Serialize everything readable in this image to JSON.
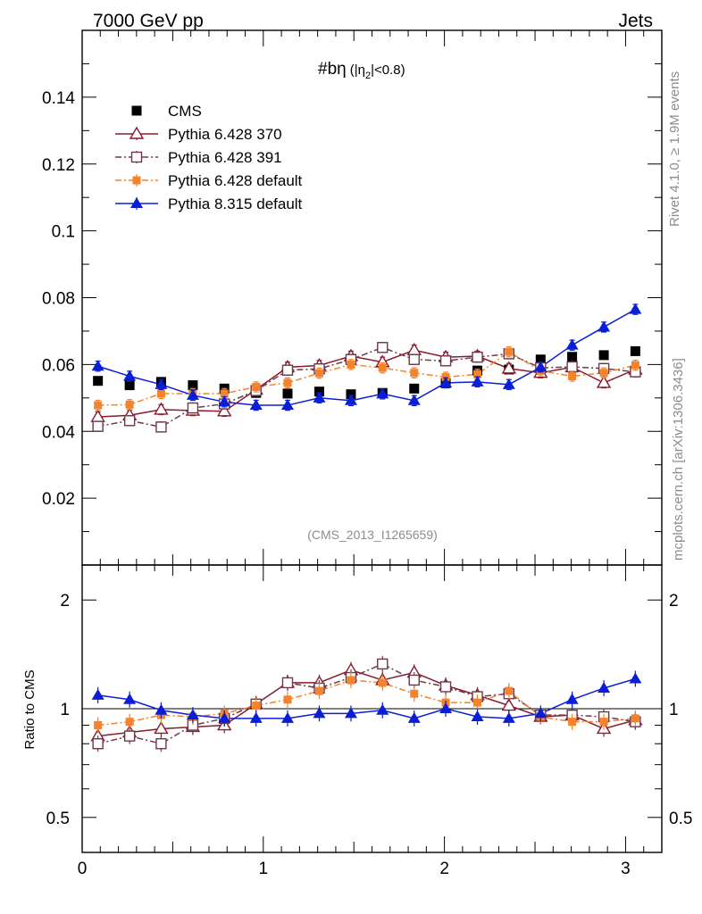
{
  "header": {
    "energy": "7000 GeV pp",
    "process": "Jets",
    "title_main": "#bη",
    "title_cond": "(|η",
    "title_sub": "2",
    "title_cond_end": "|<0.8)",
    "analysis": "(CMS_2013_I1265659)",
    "rivet": "Rivet 4.1.0, ≥ 1.9M events",
    "mcplots": "mcplots.cern.ch [arXiv:1306.3436]",
    "ratio_ylabel": "Ratio to CMS"
  },
  "colors": {
    "cms": "#000000",
    "p370": "#8b1a2b",
    "p391": "#6b3a4c",
    "pdef": "#f5832b",
    "p8": "#0a1ed6"
  },
  "chart_data": [
    {
      "type": "scatter",
      "title": "#bη (|η2|<0.8)",
      "xlim": [
        0,
        3.2
      ],
      "ylim": [
        0,
        0.16
      ],
      "y_ticks": [
        0.02,
        0.04,
        0.06,
        0.08,
        0.1,
        0.12,
        0.14
      ],
      "y_tick_labels": [
        "0.02",
        "0.04",
        "0.06",
        "0.08",
        "0.1",
        "0.12",
        "0.14"
      ],
      "x": [
        0.087,
        0.262,
        0.436,
        0.611,
        0.785,
        0.96,
        1.134,
        1.309,
        1.484,
        1.658,
        1.833,
        2.007,
        2.182,
        2.356,
        2.531,
        2.705,
        2.88,
        3.054
      ],
      "series": [
        {
          "name": "CMS",
          "style": "data",
          "values": [
            0.0551,
            0.0538,
            0.0548,
            0.0538,
            0.0528,
            0.0515,
            0.0513,
            0.0519,
            0.0511,
            0.0515,
            0.0528,
            0.0544,
            0.0582,
            0.0585,
            0.0615,
            0.0623,
            0.0628,
            0.064
          ],
          "errors": [
            0.0008,
            0.0008,
            0.0008,
            0.0008,
            0.0008,
            0.0008,
            0.0008,
            0.0008,
            0.0008,
            0.0008,
            0.0008,
            0.0008,
            0.0008,
            0.0008,
            0.0008,
            0.0008,
            0.0008,
            0.0008
          ]
        },
        {
          "name": "Pythia 6.428 370",
          "style": "open-triangle-solid",
          "values": [
            0.0443,
            0.0448,
            0.0465,
            0.0462,
            0.046,
            0.0525,
            0.0592,
            0.0597,
            0.0625,
            0.0607,
            0.0643,
            0.0622,
            0.0625,
            0.0588,
            0.0575,
            0.0592,
            0.0545,
            0.0585
          ],
          "errors": [
            0.0015,
            0.0015,
            0.0015,
            0.0015,
            0.0015,
            0.0015,
            0.0015,
            0.0015,
            0.0015,
            0.0015,
            0.0015,
            0.0015,
            0.0015,
            0.0015,
            0.0015,
            0.0015,
            0.0015,
            0.0015
          ]
        },
        {
          "name": "Pythia 6.428 391",
          "style": "open-square-dashdot",
          "values": [
            0.0415,
            0.0432,
            0.0413,
            0.047,
            0.0482,
            0.0522,
            0.0583,
            0.0587,
            0.0615,
            0.0651,
            0.0615,
            0.0611,
            0.0622,
            0.0632,
            0.059,
            0.0593,
            0.0588,
            0.0578
          ],
          "errors": [
            0.0015,
            0.0015,
            0.0015,
            0.0015,
            0.0015,
            0.0015,
            0.0015,
            0.0015,
            0.0015,
            0.0015,
            0.0015,
            0.0015,
            0.0015,
            0.0015,
            0.0015,
            0.0015,
            0.0015,
            0.0015
          ]
        },
        {
          "name": "Pythia 6.428 default",
          "style": "filled-square-dashdot",
          "values": [
            0.0478,
            0.048,
            0.0513,
            0.0513,
            0.0513,
            0.0533,
            0.0545,
            0.0574,
            0.06,
            0.059,
            0.0575,
            0.0562,
            0.0571,
            0.0638,
            0.0581,
            0.0565,
            0.0575,
            0.0598
          ],
          "errors": [
            0.0015,
            0.0015,
            0.0015,
            0.0015,
            0.0015,
            0.0015,
            0.0015,
            0.0015,
            0.0015,
            0.0015,
            0.0015,
            0.0015,
            0.0015,
            0.0015,
            0.0015,
            0.0015,
            0.0015,
            0.0015
          ]
        },
        {
          "name": "Pythia 8.315 default",
          "style": "filled-triangle-solid",
          "values": [
            0.0595,
            0.0565,
            0.054,
            0.0508,
            0.0488,
            0.0478,
            0.0478,
            0.05,
            0.0492,
            0.0512,
            0.0492,
            0.0545,
            0.0548,
            0.054,
            0.0592,
            0.0658,
            0.0712,
            0.0765
          ],
          "errors": [
            0.0015,
            0.0015,
            0.0015,
            0.0015,
            0.0015,
            0.0015,
            0.0015,
            0.0015,
            0.0015,
            0.0015,
            0.0015,
            0.0015,
            0.0015,
            0.0015,
            0.0015,
            0.0015,
            0.0015,
            0.0015
          ]
        }
      ],
      "legend": [
        "CMS",
        "Pythia 6.428 370",
        "Pythia 6.428 391",
        "Pythia 6.428 default",
        "Pythia 8.315 default"
      ],
      "legend_position": "top-left"
    },
    {
      "type": "scatter",
      "title": "",
      "ylabel": "Ratio to CMS",
      "xlim": [
        0,
        3.2
      ],
      "ylim": [
        0.4,
        2.5
      ],
      "yscale": "log",
      "y_ticks": [
        0.5,
        1,
        2
      ],
      "y_tick_labels": [
        "0.5",
        "1",
        "2"
      ],
      "x_ticks": [
        0,
        1,
        2,
        3
      ],
      "x_tick_labels": [
        "0",
        "1",
        "2",
        "3"
      ],
      "reference_line": 1,
      "x": [
        0.087,
        0.262,
        0.436,
        0.611,
        0.785,
        0.96,
        1.134,
        1.309,
        1.484,
        1.658,
        1.833,
        2.007,
        2.182,
        2.356,
        2.531,
        2.705,
        2.88,
        3.054
      ],
      "series": [
        {
          "name": "Pythia 6.428 370",
          "values": [
            0.84,
            0.86,
            0.88,
            0.89,
            0.9,
            1.03,
            1.18,
            1.18,
            1.28,
            1.2,
            1.26,
            1.16,
            1.09,
            1.02,
            0.95,
            0.96,
            0.88,
            0.93
          ]
        },
        {
          "name": "Pythia 6.428 391",
          "values": [
            0.8,
            0.84,
            0.8,
            0.9,
            0.94,
            1.03,
            1.18,
            1.14,
            1.22,
            1.33,
            1.2,
            1.15,
            1.08,
            1.1,
            0.96,
            0.96,
            0.95,
            0.92
          ]
        },
        {
          "name": "Pythia 6.428 default",
          "values": [
            0.9,
            0.92,
            0.96,
            0.95,
            0.97,
            1.02,
            1.06,
            1.12,
            1.2,
            1.18,
            1.1,
            1.04,
            1.04,
            1.12,
            0.95,
            0.92,
            0.92,
            0.94
          ]
        },
        {
          "name": "Pythia 8.315 default",
          "values": [
            1.09,
            1.06,
            0.99,
            0.96,
            0.94,
            0.94,
            0.94,
            0.97,
            0.97,
            0.99,
            0.94,
            1.0,
            0.95,
            0.94,
            0.97,
            1.06,
            1.14,
            1.21
          ]
        }
      ]
    }
  ]
}
